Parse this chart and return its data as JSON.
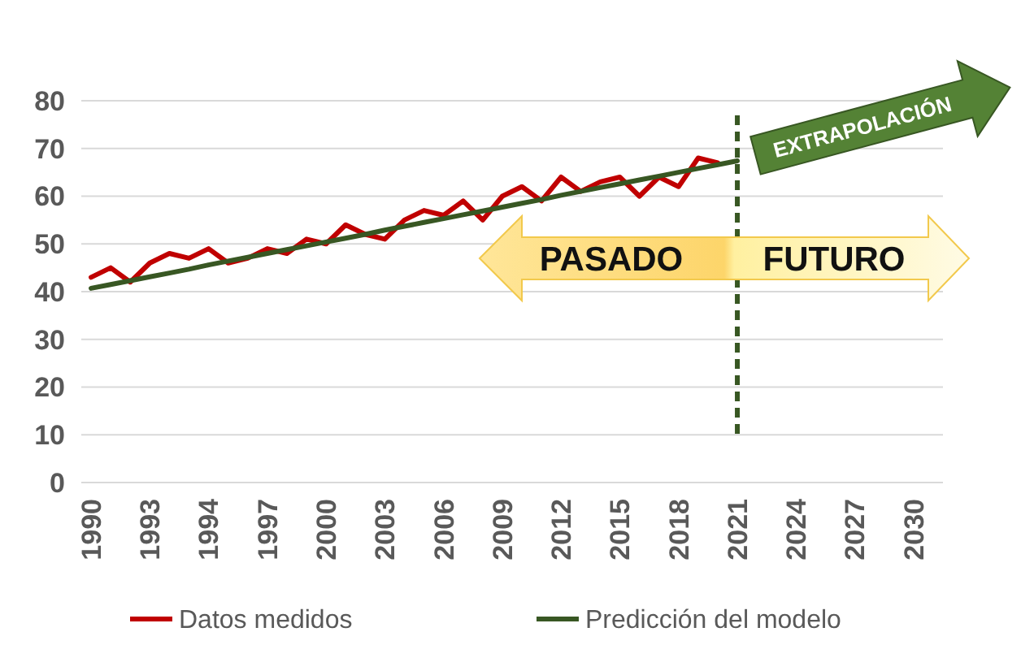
{
  "chart_data": {
    "type": "line",
    "categories": [
      "1990",
      null,
      null,
      "1993",
      null,
      null,
      "1994",
      null,
      null,
      "1997",
      null,
      null,
      "2000",
      null,
      null,
      "2003",
      null,
      null,
      "2006",
      null,
      null,
      "2009",
      null,
      null,
      "2012",
      null,
      null,
      "2015",
      null,
      null,
      "2018",
      null,
      null,
      "2021",
      null,
      null,
      "2024",
      null,
      null,
      "2027",
      null,
      null,
      "2030",
      null
    ],
    "series": [
      {
        "name": "Datos medidos",
        "color": "#c00000",
        "values": [
          43,
          45,
          42,
          46,
          48,
          47,
          49,
          46,
          47,
          49,
          48,
          51,
          50,
          54,
          52,
          51,
          55,
          57,
          56,
          59,
          55,
          60,
          62,
          59,
          64,
          61,
          63,
          64,
          60,
          64,
          62,
          68,
          67,
          null,
          null,
          null,
          null,
          null,
          null,
          null,
          null,
          null,
          null,
          null
        ]
      },
      {
        "name": "Predicción del modelo",
        "color": "#385723",
        "values": [
          40.7,
          41.5,
          42.3,
          43.1,
          43.9,
          44.7,
          45.6,
          46.4,
          47.2,
          48,
          48.8,
          49.6,
          50.4,
          51.2,
          52,
          52.9,
          53.7,
          54.5,
          55.3,
          56.1,
          56.9,
          57.7,
          58.5,
          59.3,
          60.2,
          61,
          61.8,
          62.6,
          63.4,
          64.2,
          65,
          65.8,
          66.6,
          67.4,
          null,
          null,
          null,
          null,
          null,
          null,
          null,
          null,
          null,
          null
        ]
      }
    ],
    "ylim": [
      0,
      80
    ],
    "yticks": [
      0,
      10,
      20,
      30,
      40,
      50,
      60,
      70,
      80
    ],
    "grid": "y",
    "legend": "bottom",
    "ref_lines": [
      {
        "axis": "x",
        "value": "2021",
        "color": "#385723",
        "line_style": "dashed"
      }
    ],
    "annotations": [
      "PASADO",
      "FUTURO",
      "EXTRAPOLACIÓN"
    ]
  }
}
